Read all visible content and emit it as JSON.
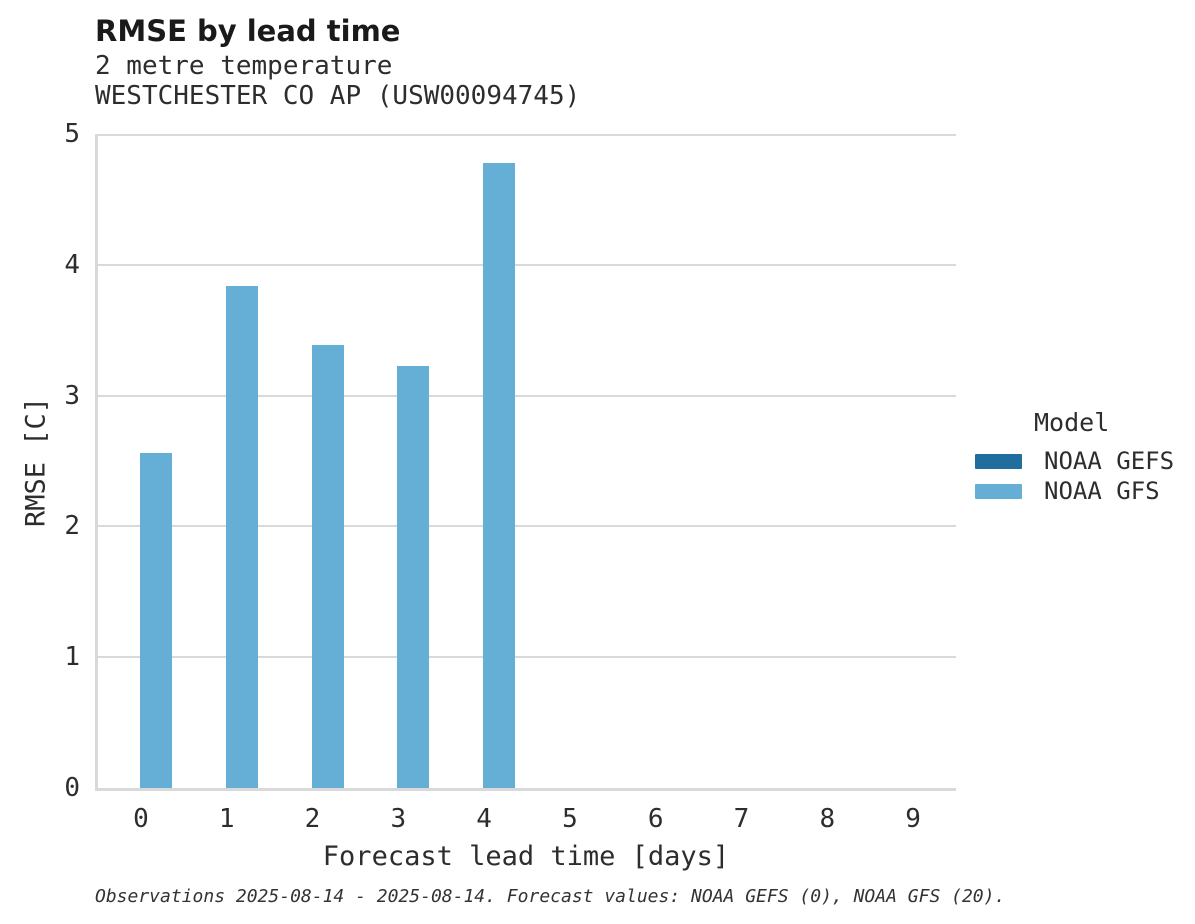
{
  "chart_data": {
    "type": "bar",
    "title": "RMSE by lead time",
    "subtitle1": "2 metre temperature",
    "subtitle2": "WESTCHESTER CO AP (USW00094745)",
    "xlabel": "Forecast lead time [days]",
    "ylabel": "RMSE [C]",
    "categories": [
      "0",
      "1",
      "2",
      "3",
      "4",
      "5",
      "6",
      "7",
      "8",
      "9"
    ],
    "yticks": [
      0,
      1,
      2,
      3,
      4,
      5
    ],
    "ylim": [
      0,
      5
    ],
    "grid": "horizontal-only",
    "grid_color": "#d9d9d9",
    "axis_color": "#d9d9d9",
    "legend": {
      "title": "Model",
      "position": "right"
    },
    "series": [
      {
        "name": "NOAA GEFS",
        "color": "#1f6e9e",
        "values": [
          null,
          null,
          null,
          null,
          null,
          null,
          null,
          null,
          null,
          null
        ]
      },
      {
        "name": "NOAA GFS",
        "color": "#65afd7",
        "values": [
          2.56,
          3.84,
          3.39,
          3.23,
          4.78,
          null,
          null,
          null,
          null,
          null
        ]
      }
    ],
    "footer": "Observations 2025-08-14 - 2025-08-14. Forecast values: NOAA GEFS (0), NOAA GFS (20)."
  }
}
